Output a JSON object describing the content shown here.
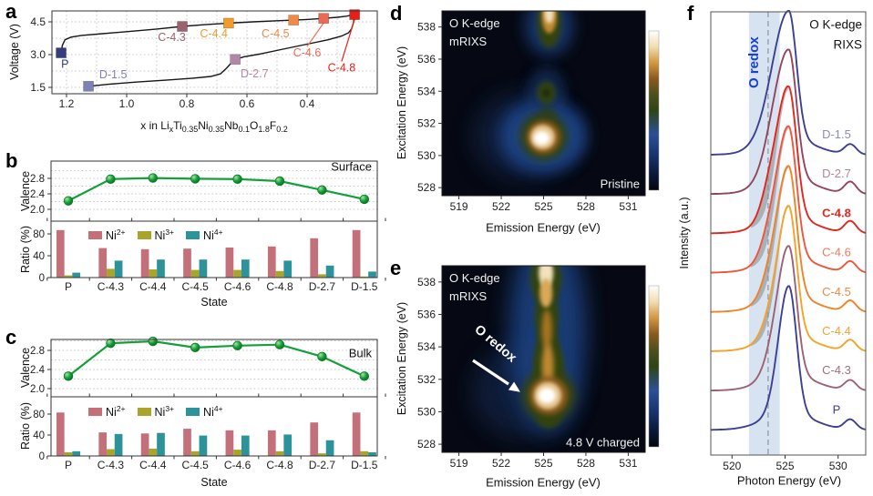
{
  "colors": {
    "grid": "#c8c8c8",
    "axis": "#333333",
    "curve_black": "#161616",
    "green_line": "#13a038",
    "green_dark": "#0b7d22",
    "band": "#cddcec",
    "dash_line": "#9aa4ae",
    "heat_bg": "#060913",
    "heat_blue": "#1e4488",
    "heat_green": "#33430f",
    "heat_brown": "#8a5a1c",
    "heat_tan": "#e8c890",
    "heat_white": "#ffffff",
    "o_redox_blue": "#1a41cc"
  },
  "panels": {
    "a": {
      "letter": "a",
      "ylabel": "Voltage (V)",
      "xlabel_parts": [
        [
          "x in Li",
          false
        ],
        [
          "x",
          true
        ],
        [
          "Ti",
          false
        ],
        [
          "0.35",
          true
        ],
        [
          "Ni",
          false
        ],
        [
          "0.35",
          true
        ],
        [
          "Nb",
          false
        ],
        [
          "0.1",
          true
        ],
        [
          "O",
          false
        ],
        [
          "1.8",
          true
        ],
        [
          "F",
          false
        ],
        [
          "0.2",
          true
        ]
      ]
    },
    "b": {
      "letter": "b",
      "title": "Surface",
      "ylabel_top": "Valence",
      "ylabel_bottom": "Ratio (%)",
      "xlabel": "State"
    },
    "c": {
      "letter": "c",
      "title": "Bulk",
      "ylabel_top": "Valence",
      "ylabel_bottom": "Ratio (%)",
      "xlabel": "State"
    },
    "d": {
      "letter": "d",
      "title_lines": [
        "O K-edge",
        "mRIXS"
      ],
      "corner": "Pristine",
      "xlabel": "Emission Energy (eV)",
      "ylabel": "Excitation Energy (eV)"
    },
    "e": {
      "letter": "e",
      "title_lines": [
        "O K-edge",
        "mRIXS"
      ],
      "corner": "4.8 V charged",
      "annotation": "O redox",
      "xlabel": "Emission Energy (eV)",
      "ylabel": "Excitation Energy (eV)"
    },
    "f": {
      "letter": "f",
      "title_lines": [
        "O K-edge",
        "RIXS"
      ],
      "band_label": "O redox",
      "xlabel": "Photon Energy (eV)",
      "ylabel": "Intensity (a.u.)"
    }
  },
  "chart_data": [
    {
      "id": "a",
      "type": "line",
      "ylabel": "Voltage (V)",
      "xlabel": "x in LixTi0.35Ni0.35Nb0.1O1.8F0.2",
      "xlim": [
        1.25,
        0.165
      ],
      "ylim": [
        1.2,
        5.0
      ],
      "xticks": [
        1.2,
        1.0,
        0.8,
        0.6,
        0.4
      ],
      "yticks": [
        1.5,
        3.0,
        4.5
      ],
      "grid_x_step": 0.1,
      "grid_y_step": 0.75,
      "series": [
        {
          "name": "charge",
          "points": [
            [
              1.218,
              3.08
            ],
            [
              1.214,
              3.42
            ],
            [
              1.205,
              3.68
            ],
            [
              1.185,
              3.8
            ],
            [
              1.15,
              3.88
            ],
            [
              1.08,
              3.96
            ],
            [
              1.0,
              4.05
            ],
            [
              0.9,
              4.17
            ],
            [
              0.815,
              4.29
            ],
            [
              0.74,
              4.37
            ],
            [
              0.661,
              4.44
            ],
            [
              0.58,
              4.5
            ],
            [
              0.5,
              4.55
            ],
            [
              0.445,
              4.58
            ],
            [
              0.4,
              4.61
            ],
            [
              0.345,
              4.66
            ],
            [
              0.3,
              4.71
            ],
            [
              0.27,
              4.76
            ],
            [
              0.242,
              4.83
            ]
          ]
        },
        {
          "name": "discharge",
          "points": [
            [
              0.242,
              4.83
            ],
            [
              0.246,
              4.45
            ],
            [
              0.252,
              4.18
            ],
            [
              0.262,
              4.0
            ],
            [
              0.285,
              3.85
            ],
            [
              0.33,
              3.68
            ],
            [
              0.4,
              3.48
            ],
            [
              0.48,
              3.25
            ],
            [
              0.56,
              3.02
            ],
            [
              0.61,
              2.9
            ],
            [
              0.639,
              2.78
            ],
            [
              0.652,
              2.62
            ],
            [
              0.668,
              2.38
            ],
            [
              0.688,
              2.12
            ],
            [
              0.72,
              2.0
            ],
            [
              0.78,
              1.92
            ],
            [
              0.87,
              1.83
            ],
            [
              0.97,
              1.74
            ],
            [
              1.06,
              1.64
            ],
            [
              1.127,
              1.55
            ]
          ]
        }
      ],
      "markers": [
        {
          "name": "P",
          "x": 1.218,
          "v": 3.08,
          "color": "#363d7d",
          "label_x": 1.205,
          "label_v": 2.56,
          "leader": false
        },
        {
          "name": "D-1.5",
          "x": 1.127,
          "v": 1.55,
          "color": "#7e81b8",
          "label_x": 1.045,
          "label_v": 2.08,
          "leader": false
        },
        {
          "name": "C-4.3",
          "x": 0.815,
          "v": 4.29,
          "color": "#99636f",
          "label_x": 0.85,
          "label_v": 3.8,
          "leader": false
        },
        {
          "name": "C-4.4",
          "x": 0.661,
          "v": 4.44,
          "color": "#f39c2b",
          "label_x": 0.71,
          "label_v": 3.95,
          "leader": false
        },
        {
          "name": "C-4.5",
          "x": 0.445,
          "v": 4.58,
          "color": "#ef8a47",
          "label_x": 0.505,
          "label_v": 3.95,
          "leader": false
        },
        {
          "name": "C-4.6",
          "x": 0.345,
          "v": 4.66,
          "color": "#ec6a55",
          "label_x": 0.4,
          "label_v": 3.08,
          "leader": true
        },
        {
          "name": "C-4.8",
          "x": 0.242,
          "v": 4.83,
          "color": "#e81f16",
          "label_x": 0.285,
          "label_v": 2.4,
          "leader": true
        },
        {
          "name": "D-2.7",
          "x": 0.639,
          "v": 2.78,
          "color": "#b189a4",
          "label_x": 0.575,
          "label_v": 2.12,
          "leader": false
        }
      ]
    },
    {
      "id": "b_valence",
      "type": "line",
      "title": "Surface",
      "ylabel": "Valence",
      "categories": [
        "P",
        "C-4.3",
        "C-4.4",
        "C-4.5",
        "C-4.6",
        "C-4.8",
        "D-2.7",
        "D-1.5"
      ],
      "values": [
        2.22,
        2.78,
        2.81,
        2.79,
        2.78,
        2.73,
        2.5,
        2.26
      ],
      "yticks": [
        2.0,
        2.4,
        2.8
      ],
      "grid": [
        2.0,
        2.2,
        2.4,
        2.6,
        2.8,
        3.0
      ],
      "ylim": [
        1.95,
        3.25
      ]
    },
    {
      "id": "b_ratio",
      "type": "bar",
      "ylabel": "Ratio (%)",
      "xlabel": "State",
      "categories": [
        "P",
        "C-4.3",
        "C-4.4",
        "C-4.5",
        "C-4.6",
        "C-4.8",
        "D-2.7",
        "D-1.5"
      ],
      "yticks": [
        0,
        40,
        80
      ],
      "ylim": [
        0,
        103
      ],
      "series": [
        {
          "name": "Ni2+",
          "base": "Ni",
          "sup": "2+",
          "color": "#c3707b",
          "values": [
            87,
            54,
            52,
            53,
            55,
            57,
            72,
            87
          ]
        },
        {
          "name": "Ni3+",
          "base": "Ni",
          "sup": "3+",
          "color": "#a8a52a",
          "values": [
            4,
            16,
            15,
            14,
            14,
            12,
            6,
            2
          ]
        },
        {
          "name": "Ni4+",
          "base": "Ni",
          "sup": "4+",
          "color": "#2d939b",
          "values": [
            9,
            31,
            33,
            33,
            33,
            31,
            22,
            11
          ]
        }
      ]
    },
    {
      "id": "c_valence",
      "type": "line",
      "title": "Bulk",
      "ylabel": "Valence",
      "categories": [
        "P",
        "C-4.3",
        "C-4.4",
        "C-4.5",
        "C-4.6",
        "C-4.8",
        "D-2.7",
        "D-1.5"
      ],
      "values": [
        2.26,
        2.95,
        2.99,
        2.86,
        2.9,
        2.92,
        2.67,
        2.26
      ],
      "yticks": [
        2.0,
        2.4,
        2.8
      ],
      "grid": [
        2.0,
        2.2,
        2.4,
        2.6,
        2.8,
        3.0
      ],
      "ylim": [
        1.95,
        3.15
      ]
    },
    {
      "id": "c_ratio",
      "type": "bar",
      "ylabel": "Ratio (%)",
      "xlabel": "State",
      "categories": [
        "P",
        "C-4.3",
        "C-4.4",
        "C-4.5",
        "C-4.6",
        "C-4.8",
        "D-2.7",
        "D-1.5"
      ],
      "yticks": [
        0,
        40,
        80
      ],
      "ylim": [
        0,
        113
      ],
      "series": [
        {
          "name": "Ni2+",
          "base": "Ni",
          "sup": "2+",
          "color": "#c3707b",
          "values": [
            83,
            45,
            43,
            52,
            49,
            49,
            64,
            83
          ]
        },
        {
          "name": "Ni3+",
          "base": "Ni",
          "sup": "3+",
          "color": "#a8a52a",
          "values": [
            7,
            13,
            14,
            9,
            12,
            9,
            5,
            9
          ]
        },
        {
          "name": "Ni4+",
          "base": "Ni",
          "sup": "4+",
          "color": "#2d939b",
          "values": [
            9,
            42,
            44,
            39,
            39,
            41,
            30,
            7
          ]
        }
      ]
    },
    {
      "id": "d",
      "type": "heatmap",
      "title": "O K-edge mRIXS",
      "state": "Pristine",
      "xlabel": "Emission Energy (eV)",
      "ylabel": "Excitation Energy (eV)",
      "xticks": [
        519,
        522,
        525,
        528,
        531
      ],
      "yticks": [
        528,
        530,
        532,
        534,
        536,
        538
      ],
      "xlim": [
        517.8,
        532.2
      ],
      "ylim": [
        527.5,
        539.0
      ],
      "features": [
        {
          "emission": 525.0,
          "excitation": 531.2,
          "intensity": "strong"
        },
        {
          "emission": 525.2,
          "excitation": 533.9,
          "intensity": "weak"
        },
        {
          "emission": 525.4,
          "excitation": 538.4,
          "intensity": "strong"
        }
      ]
    },
    {
      "id": "e",
      "type": "heatmap",
      "title": "O K-edge mRIXS",
      "state": "4.8 V charged",
      "annotation": "O redox",
      "xlabel": "Emission Energy (eV)",
      "ylabel": "Excitation Energy (eV)",
      "xticks": [
        519,
        522,
        525,
        528,
        531
      ],
      "yticks": [
        528,
        530,
        532,
        534,
        536,
        538
      ],
      "xlim": [
        517.8,
        532.2
      ],
      "ylim": [
        527.5,
        539.0
      ],
      "features": [
        {
          "emission": 525.3,
          "excitation": 531.0,
          "intensity": "strong"
        },
        {
          "emission": 525.5,
          "excitation": 535.0,
          "intensity": "column"
        },
        {
          "emission": 525.5,
          "excitation": 538.6,
          "intensity": "strong"
        }
      ]
    },
    {
      "id": "f",
      "type": "line",
      "title": "O K-edge RIXS",
      "xlabel": "Photon Energy (eV)",
      "ylabel": "Intensity (a.u.)",
      "xticks": [
        520,
        525,
        530
      ],
      "xlim": [
        518.0,
        532.6
      ],
      "band_eV": [
        521.6,
        524.5
      ],
      "dashed_line_eV": 523.4,
      "main_peak_eV": 525.35,
      "small_peak_eV": 531.15,
      "shoulder_eV": 523.55,
      "curves": [
        {
          "name": "D-1.5",
          "color": "#3d3f92",
          "label_color": "#8a8cc0",
          "sigma_left": 1.55,
          "shoulder": 0,
          "bump": 11,
          "bold": false
        },
        {
          "name": "D-2.7",
          "color": "#94455e",
          "label_color": "#b2849c",
          "sigma_left": 1.4,
          "shoulder": 6,
          "bump": 13,
          "bold": false
        },
        {
          "name": "C-4.8",
          "color": "#e3261d",
          "label_color": "#e3261d",
          "sigma_left": 1.05,
          "shoulder": 30,
          "bump": 13,
          "bold": true
        },
        {
          "name": "C-4.6",
          "color": "#f0543a",
          "label_color": "#ef7a5e",
          "sigma_left": 1.05,
          "shoulder": 25,
          "bump": 12,
          "bold": false
        },
        {
          "name": "C-4.5",
          "color": "#f08226",
          "label_color": "#f1883e",
          "sigma_left": 1.05,
          "shoulder": 21,
          "bump": 12,
          "bold": false
        },
        {
          "name": "C-4.4",
          "color": "#f5a226",
          "label_color": "#f5a233",
          "sigma_left": 1.02,
          "shoulder": 16,
          "bump": 12,
          "bold": false
        },
        {
          "name": "C-4.3",
          "color": "#9a6274",
          "label_color": "#a56e7e",
          "sigma_left": 1.1,
          "shoulder": 8,
          "bump": 11,
          "bold": false
        },
        {
          "name": "P",
          "color": "#3d3f92",
          "label_color": "#3d3f92",
          "sigma_left": 0.98,
          "shoulder": 0,
          "bump": 11,
          "bold": false
        }
      ]
    }
  ]
}
